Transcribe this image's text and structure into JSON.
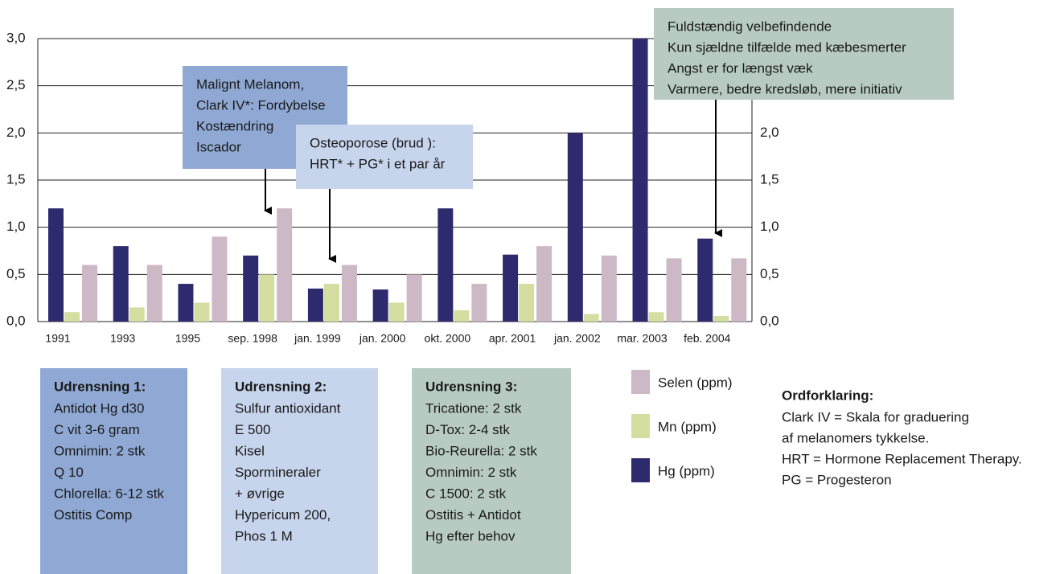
{
  "chart_data": {
    "type": "bar",
    "categories": [
      "1991",
      "1993",
      "1995",
      "sep. 1998",
      "jan. 1999",
      "jan. 2000",
      "okt. 2000",
      "apr. 2001",
      "jan. 2002",
      "mar. 2003",
      "feb. 2004"
    ],
    "series": [
      {
        "name": "Hg (ppm)",
        "color": "#2e2a6e",
        "values": [
          1.2,
          0.8,
          0.4,
          0.7,
          0.35,
          0.34,
          1.2,
          0.71,
          2.0,
          3.0,
          0.88
        ]
      },
      {
        "name": "Mn (ppm)",
        "color": "#d4dea0",
        "values": [
          0.1,
          0.15,
          0.2,
          0.5,
          0.4,
          0.2,
          0.12,
          0.4,
          0.08,
          0.1,
          0.06
        ]
      },
      {
        "name": "Selen (ppm)",
        "color": "#cdb8c6",
        "values": [
          0.6,
          0.6,
          0.9,
          1.2,
          0.6,
          0.5,
          0.4,
          0.8,
          0.7,
          0.67,
          0.67
        ]
      }
    ],
    "ylim": [
      0,
      3
    ],
    "yticks": [
      {
        "value": 0,
        "label": "0,0"
      },
      {
        "value": 0.5,
        "label": "0,5"
      },
      {
        "value": 1,
        "label": "1,0"
      },
      {
        "value": 1.5,
        "label": "1,5"
      },
      {
        "value": 2,
        "label": "2,0"
      },
      {
        "value": 2.5,
        "label": "2,5"
      },
      {
        "value": 3,
        "label": "3,0"
      }
    ],
    "grid": true,
    "annotations": [
      {
        "lines": [
          "Malignt Melanom,",
          "Clark IV*: Fordybelse",
          "Kostændring",
          "Iscador"
        ]
      },
      {
        "lines": [
          "Osteoporose (brud ):",
          "HRT* + PG* i et par år"
        ]
      },
      {
        "lines": [
          "Fuldstændig velbefindende",
          "Kun sjældne tilfælde med kæbesmerter",
          "Angst er for længst væk",
          "Varmere, bedre kredsløb, mere initiativ"
        ]
      }
    ]
  },
  "panels": [
    {
      "title": "Udrensning 1:",
      "lines": [
        "Antidot Hg d30",
        "C vit 3-6 gram",
        "Omnimin: 2 stk",
        "Q 10",
        "Chlorella: 6-12 stk",
        "Ostitis Comp"
      ]
    },
    {
      "title": "Udrensning 2:",
      "lines": [
        "Sulfur antioxidant",
        "E 500",
        "Kisel",
        "Spormineraler",
        "+ øvrige",
        "Hypericum 200,",
        "Phos 1 M"
      ]
    },
    {
      "title": "Udrensning 3:",
      "lines": [
        "Tricatione: 2 stk",
        "D-Tox: 2-4 stk",
        "Bio-Reurella: 2 stk",
        "Omnimin: 2 stk",
        "C 1500: 2 stk",
        "Ostitis + Antidot",
        "Hg efter behov"
      ]
    }
  ],
  "glossary": {
    "title": "Ordforklaring:",
    "lines": [
      "Clark IV = Skala for graduering",
      "af melanomers tykkelse.",
      "HRT = Hormone Replacement Therapy.",
      "PG = Progesteron"
    ]
  }
}
